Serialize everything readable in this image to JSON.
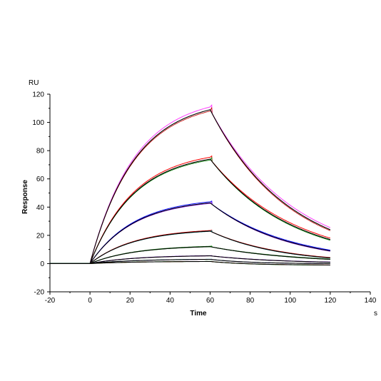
{
  "chart_data": {
    "type": "line",
    "title": "",
    "xlabel": "Time",
    "ylabel": "Response",
    "x_unit": "s",
    "y_unit": "RU",
    "xlim": [
      -20,
      140
    ],
    "ylim": [
      -20,
      120
    ],
    "x_ticks": [
      "-20",
      "0",
      "20",
      "40",
      "60",
      "80",
      "100",
      "120",
      "140"
    ],
    "y_ticks": [
      "-20",
      "0",
      "20",
      "40",
      "60",
      "80",
      "100",
      "120"
    ],
    "grid": false,
    "legend": "none",
    "colors": {
      "measured_palette": [
        "#ff40ff",
        "#ff0000",
        "#0000ff",
        "#c00000",
        "#008000",
        "#8000ff",
        "#00a0a0",
        "#00c000",
        "#800080"
      ],
      "fit": "#000000"
    },
    "association_end_s": 60,
    "dissociation_end_s": 120,
    "series": [
      {
        "points": [
          [
            -20,
            0
          ],
          [
            0,
            0
          ],
          [
            60,
            109
          ],
          [
            120,
            24
          ]
        ]
      },
      {
        "points": [
          [
            -20,
            0
          ],
          [
            0,
            0
          ],
          [
            60,
            74
          ],
          [
            120,
            17
          ]
        ]
      },
      {
        "points": [
          [
            -20,
            0
          ],
          [
            0,
            0
          ],
          [
            60,
            43
          ],
          [
            120,
            9
          ]
        ]
      },
      {
        "points": [
          [
            -20,
            0
          ],
          [
            0,
            0
          ],
          [
            60,
            23
          ],
          [
            120,
            4
          ]
        ]
      },
      {
        "points": [
          [
            -20,
            0
          ],
          [
            0,
            0
          ],
          [
            60,
            12
          ],
          [
            120,
            3
          ]
        ]
      },
      {
        "points": [
          [
            -20,
            0
          ],
          [
            0,
            0
          ],
          [
            60,
            5.5
          ],
          [
            120,
            1
          ]
        ]
      },
      {
        "points": [
          [
            -20,
            0
          ],
          [
            0,
            0
          ],
          [
            60,
            3
          ],
          [
            120,
            0
          ]
        ]
      },
      {
        "points": [
          [
            -20,
            0
          ],
          [
            0,
            0
          ],
          [
            60,
            1.5
          ],
          [
            120,
            -1
          ]
        ]
      }
    ]
  }
}
